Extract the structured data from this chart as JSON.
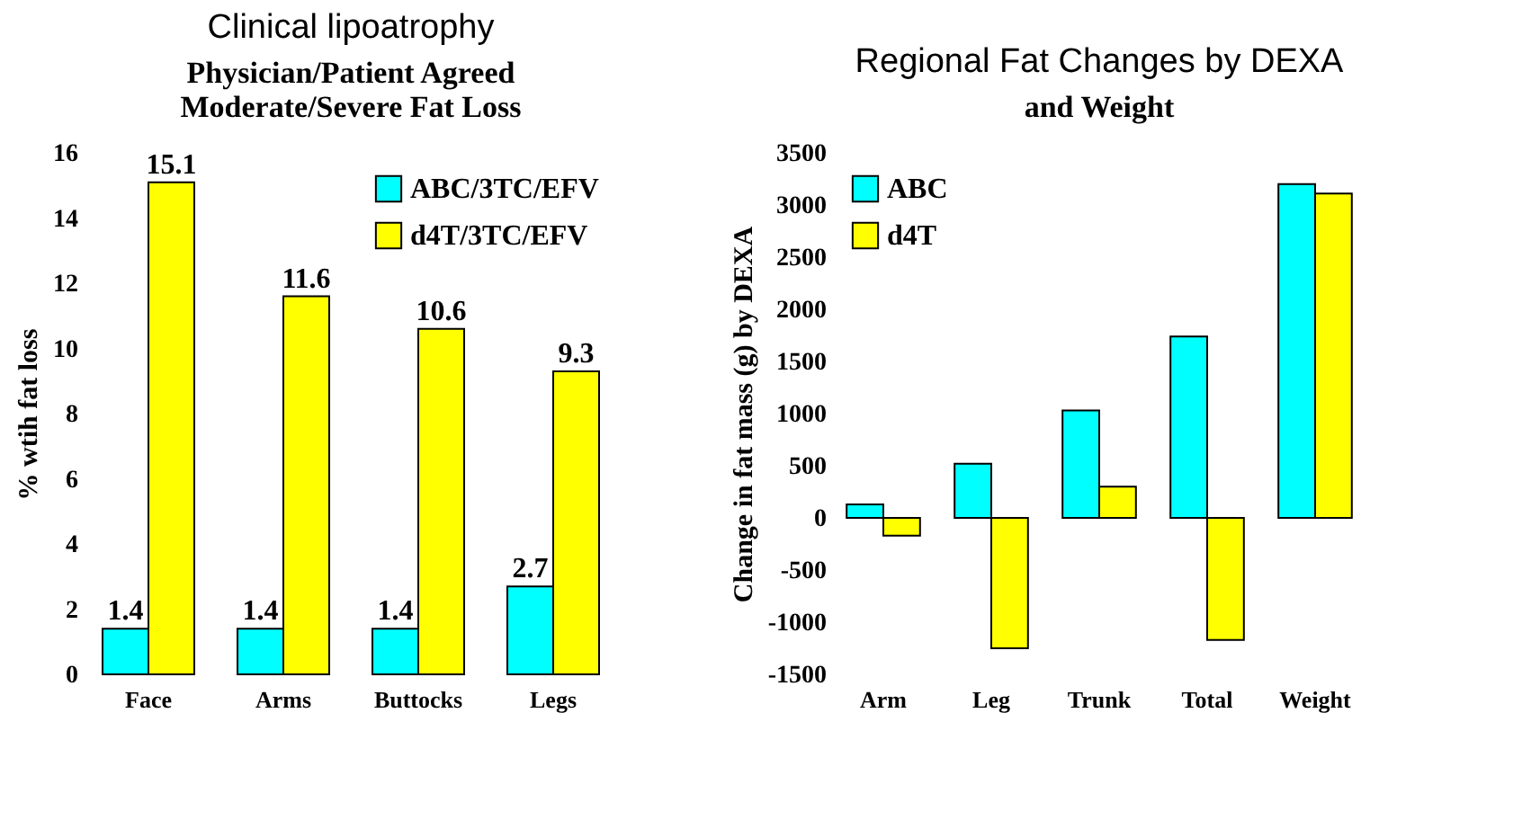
{
  "chart_data": [
    {
      "type": "bar",
      "title": "Clinical lipoatrophy",
      "subtitle": "Physician/Patient Agreed\nModerate/Severe Fat Loss",
      "ylabel": "% wtih fat loss",
      "categories": [
        "Face",
        "Arms",
        "Buttocks",
        "Legs"
      ],
      "series": [
        {
          "name": "ABC/3TC/EFV",
          "color": "#00ffff",
          "values": [
            1.4,
            1.4,
            1.4,
            2.7
          ]
        },
        {
          "name": "d4T/3TC/EFV",
          "color": "#ffff00",
          "values": [
            15.1,
            11.6,
            10.6,
            9.3
          ]
        }
      ],
      "ylim": [
        0,
        16
      ],
      "yticks": [
        0,
        2,
        4,
        6,
        8,
        10,
        12,
        14,
        16
      ],
      "data_labels": true,
      "legend": "top right",
      "grid": false
    },
    {
      "type": "bar",
      "title": "Regional Fat Changes by DEXA",
      "subtitle": "and Weight",
      "ylabel": "Change in fat mass (g) by DEXA",
      "categories": [
        "Arm",
        "Leg",
        "Trunk",
        "Total",
        "Weight"
      ],
      "series": [
        {
          "name": "ABC",
          "color": "#00ffff",
          "values": [
            130,
            520,
            1030,
            1740,
            3200
          ]
        },
        {
          "name": "d4T",
          "color": "#ffff00",
          "values": [
            -170,
            -1250,
            300,
            -1170,
            3110
          ]
        }
      ],
      "ylim": [
        -1500,
        3500
      ],
      "yticks": [
        -1500,
        -1000,
        -500,
        0,
        500,
        1000,
        1500,
        2000,
        2500,
        3000,
        3500
      ],
      "legend": "top left",
      "grid": false
    }
  ]
}
